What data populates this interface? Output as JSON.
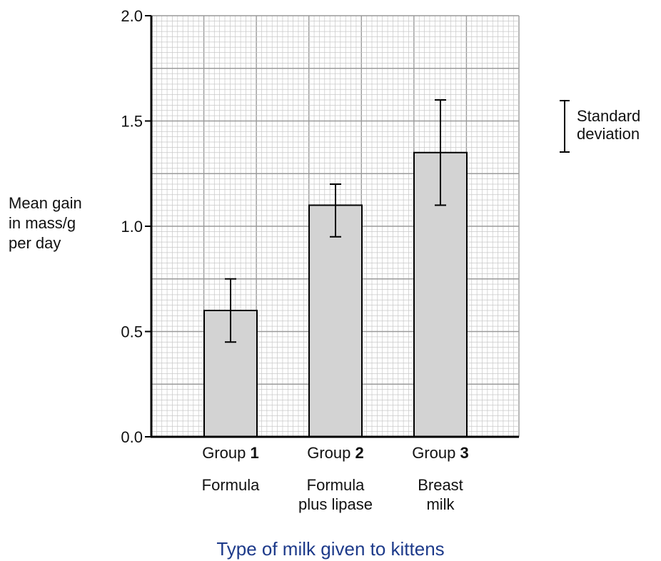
{
  "chart_data": {
    "type": "bar",
    "categories": [
      {
        "prefix": "Group ",
        "number": "1",
        "lines": [
          "Formula"
        ]
      },
      {
        "prefix": "Group ",
        "number": "2",
        "lines": [
          "Formula",
          "plus lipase"
        ]
      },
      {
        "prefix": "Group ",
        "number": "3",
        "lines": [
          "Breast",
          "milk"
        ]
      }
    ],
    "values": [
      0.6,
      1.1,
      1.35
    ],
    "error_low": [
      0.45,
      0.95,
      1.1
    ],
    "error_high": [
      0.75,
      1.2,
      1.6
    ],
    "ylabel_lines": [
      "Mean gain",
      "in mass/g",
      "per day"
    ],
    "xlabel": "Type of milk given to kittens",
    "ylim": [
      0,
      2.0
    ],
    "yticks": [
      "0.0",
      "0.5",
      "1.0",
      "1.5",
      "2.0"
    ],
    "grid": true,
    "legend": {
      "lines": [
        "Standard",
        "deviation"
      ],
      "position": "top-right"
    },
    "colors": {
      "bar": "#d3d3d3",
      "minor_grid": "#c8c8c8",
      "major_grid": "#9a9a9a",
      "axis": "#000000",
      "xlabel": "#1d3a8a"
    }
  }
}
